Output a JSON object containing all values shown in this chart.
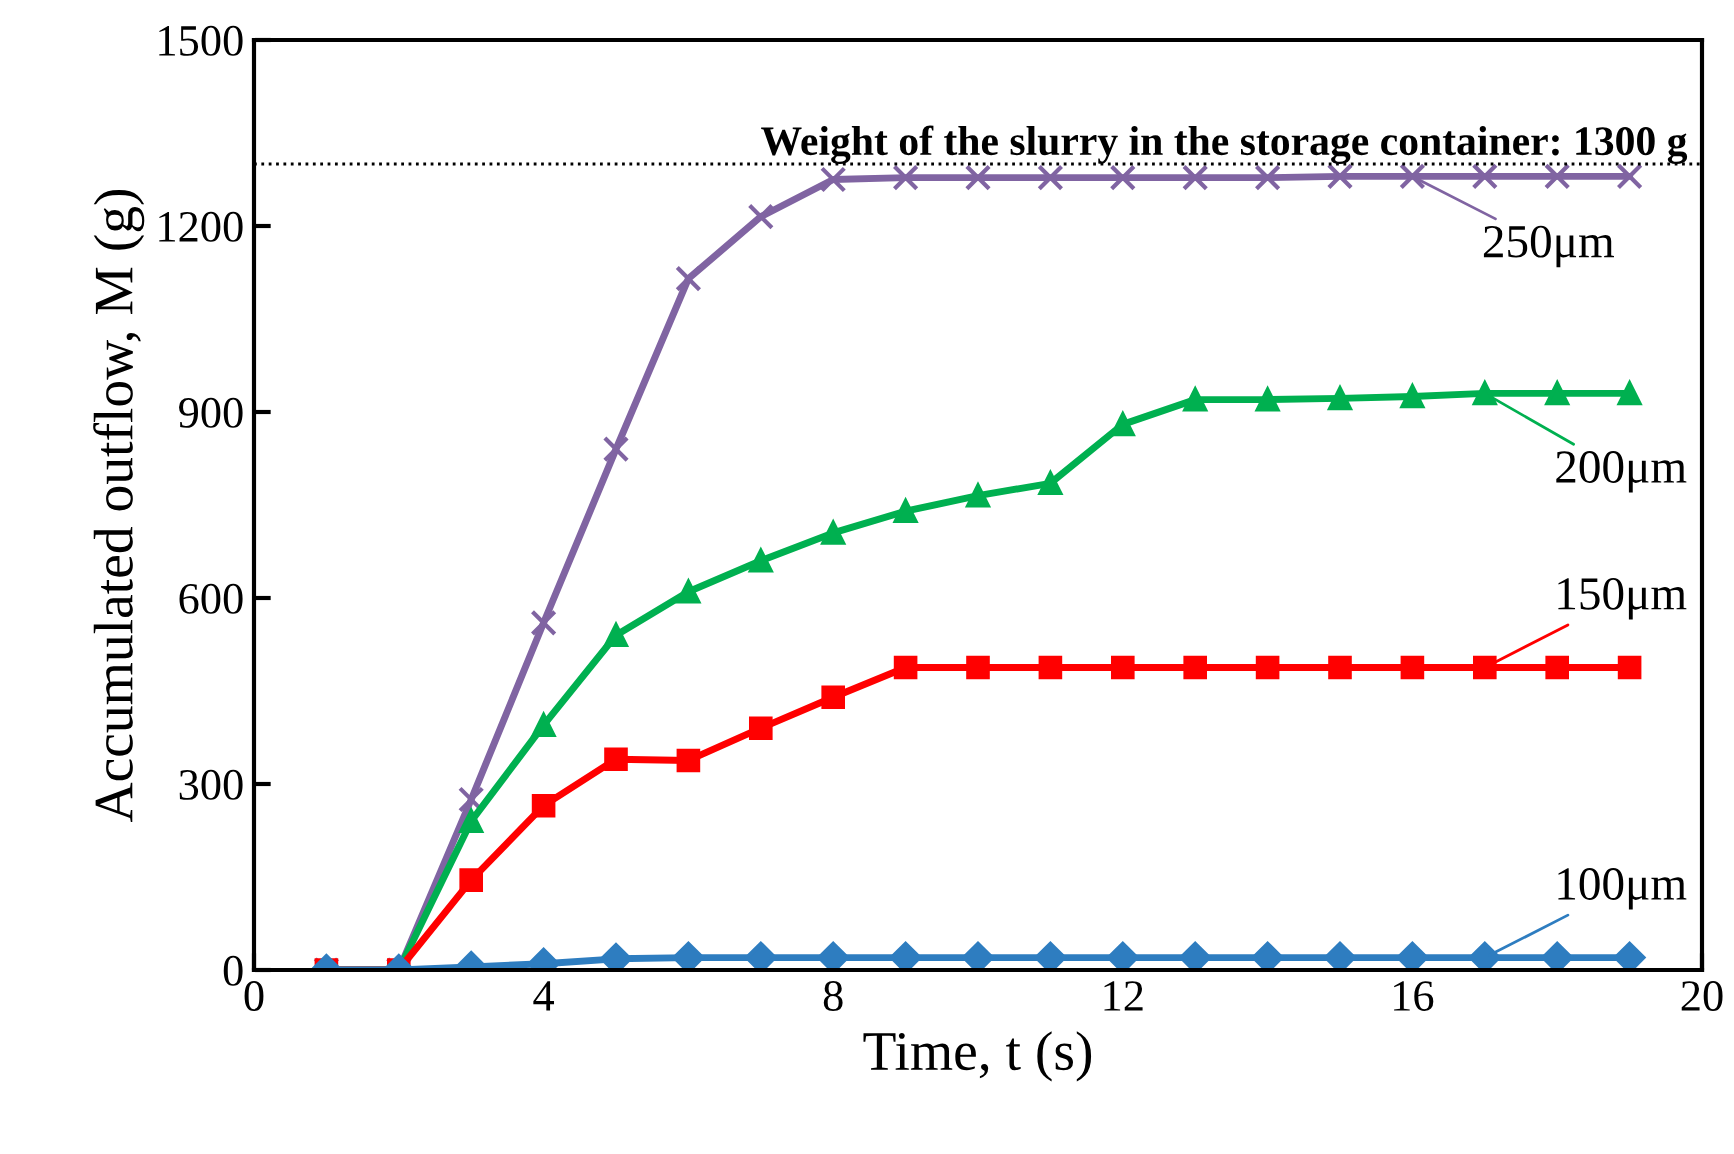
{
  "chart_data": {
    "type": "line",
    "xlabel": "Time, t (s)",
    "ylabel": "Accumulated outflow, M (g)",
    "x": [
      1,
      2,
      3,
      4,
      5,
      6,
      7,
      8,
      9,
      10,
      11,
      12,
      13,
      14,
      15,
      16,
      17,
      18,
      19
    ],
    "series": [
      {
        "name": "250μm",
        "color": "#8064a2",
        "marker": "cross",
        "values": [
          0,
          0,
          275,
          560,
          840,
          1115,
          1215,
          1275,
          1278,
          1278,
          1278,
          1278,
          1278,
          1278,
          1280,
          1280,
          1280,
          1280,
          1280
        ]
      },
      {
        "name": "200μm",
        "color": "#00b050",
        "marker": "triangle",
        "values": [
          0,
          0,
          240,
          395,
          540,
          610,
          660,
          705,
          740,
          765,
          785,
          880,
          920,
          920,
          922,
          925,
          930,
          930,
          930
        ]
      },
      {
        "name": "150μm",
        "color": "#ff0000",
        "marker": "square",
        "values": [
          0,
          0,
          145,
          265,
          340,
          338,
          390,
          440,
          488,
          488,
          488,
          488,
          488,
          488,
          488,
          488,
          488,
          488,
          488
        ]
      },
      {
        "name": "100μm",
        "color": "#2e7dc0",
        "marker": "diamond",
        "values": [
          0,
          0,
          5,
          10,
          18,
          20,
          20,
          20,
          20,
          20,
          20,
          20,
          20,
          20,
          20,
          20,
          20,
          20,
          20
        ]
      }
    ],
    "xlim": [
      0,
      20
    ],
    "xticks": [
      0,
      4,
      8,
      12,
      16,
      20
    ],
    "ylim": [
      0,
      1500
    ],
    "yticks": [
      0,
      300,
      600,
      900,
      1200,
      1500
    ],
    "ref_lines": [
      {
        "axis": "y",
        "value": 1300,
        "label": "Weight of the slurry in the storage container: 1300 g",
        "color": "#000000",
        "line_style": "dotted"
      }
    ],
    "grid": false,
    "legend": "right"
  }
}
